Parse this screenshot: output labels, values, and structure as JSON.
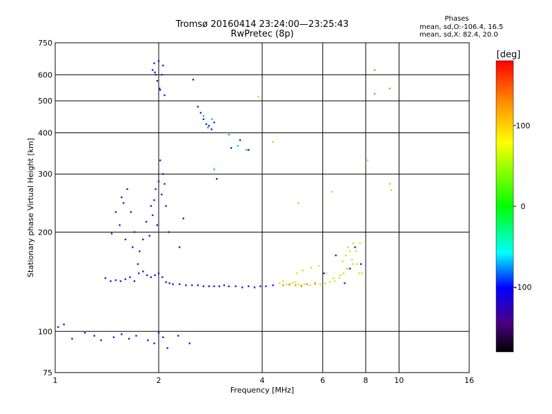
{
  "chart_data": {
    "type": "scatter",
    "title": "Tromsø 20160414 23:24:00—23:25:43",
    "subtitle": "RwPretec (8p)",
    "xlabel": "Frequency [MHz]",
    "ylabel": "Stationary phase Virtual Height [km]",
    "x_scale": "log",
    "y_scale": "log",
    "xlim": [
      1,
      16
    ],
    "ylim": [
      75,
      750
    ],
    "x_ticks": [
      1,
      2,
      4,
      6,
      8,
      10,
      16
    ],
    "x_tick_labels": [
      "1",
      "2",
      "4",
      "6",
      "8",
      "10",
      "16"
    ],
    "y_ticks": [
      75,
      100,
      200,
      300,
      400,
      500,
      600,
      750
    ],
    "y_tick_labels": [
      "75",
      "100",
      "200",
      "300",
      "400",
      "500",
      "600",
      "750"
    ],
    "grid": true,
    "info": {
      "heading": "Phases",
      "line1": "mean, sd,O:-106.4, 16.5",
      "line2": "mean, sd,X: 82.4, 20.0"
    },
    "colorbar": {
      "label": "[deg]",
      "range": [
        -180,
        180
      ],
      "ticks": [
        100,
        0,
        -100
      ],
      "tick_labels": [
        "100",
        "0",
        "-100"
      ],
      "colors": [
        "#ff0000",
        "#ff8c00",
        "#ffff00",
        "#00ff00",
        "#00ffff",
        "#0000ff",
        "#4b0082",
        "#000000"
      ]
    },
    "series": [
      {
        "x": [
          1.02,
          1.06,
          1.12,
          1.22,
          1.3,
          1.36,
          1.48,
          1.56,
          1.64,
          1.72,
          1.86,
          1.94,
          2.0,
          2.06,
          2.12,
          2.28,
          2.46,
          1.4,
          1.45,
          1.5,
          1.55,
          1.6,
          1.65,
          1.7,
          1.75,
          1.8,
          1.85,
          1.9,
          1.95,
          2.0,
          2.05,
          2.1,
          2.15,
          2.2,
          2.3,
          2.4,
          2.5,
          2.6,
          2.7,
          2.8,
          2.9,
          3.0,
          3.1,
          3.2,
          3.35,
          3.5,
          3.65,
          3.8,
          3.95,
          4.1,
          4.3,
          1.46,
          1.5,
          1.54,
          1.56,
          1.58,
          1.6,
          1.62,
          1.66,
          1.68,
          1.7,
          1.74,
          1.76,
          1.8,
          1.84,
          1.88,
          1.9,
          1.92,
          1.94,
          1.96,
          1.98,
          2.0,
          2.02,
          2.04,
          2.06,
          2.08,
          2.1,
          2.14,
          2.3,
          2.36,
          1.92,
          1.94,
          1.96,
          1.98,
          2.0,
          2.02,
          2.04,
          2.06,
          2.08,
          1.95,
          2.01,
          2.6,
          2.65,
          2.7,
          2.75,
          2.8,
          2.85,
          2.9,
          3.25,
          3.45,
          3.65,
          2.52,
          2.95,
          6.05,
          6.55,
          6.95,
          7.2,
          7.45,
          7.75
        ],
        "y": [
          103,
          105,
          95,
          99,
          97,
          94,
          96,
          98,
          95,
          97,
          94,
          92,
          99,
          96,
          89,
          97,
          92,
          145,
          142,
          143,
          142,
          144,
          146,
          142,
          150,
          152,
          148,
          146,
          148,
          150,
          146,
          141,
          140,
          139,
          139,
          138,
          138,
          138,
          137,
          137,
          137,
          137,
          138,
          137,
          137,
          136,
          137,
          136,
          137,
          137,
          138,
          198,
          230,
          210,
          255,
          245,
          190,
          270,
          230,
          180,
          200,
          160,
          175,
          190,
          215,
          195,
          240,
          225,
          250,
          270,
          210,
          285,
          330,
          260,
          300,
          280,
          240,
          200,
          180,
          220,
          620,
          650,
          600,
          575,
          660,
          540,
          600,
          640,
          520,
          610,
          545,
          480,
          460,
          440,
          425,
          420,
          410,
          430,
          360,
          380,
          355,
          580,
          290,
          150,
          170,
          140,
          155,
          180,
          160
        ],
        "color": "#1a1adc"
      },
      {
        "x": [
          4.5,
          4.6,
          4.7,
          4.8,
          4.9,
          5.0,
          5.1,
          5.2,
          5.3,
          5.5,
          5.7,
          5.9,
          6.1,
          6.3,
          6.5,
          6.7,
          6.9,
          7.1,
          7.3,
          7.5,
          7.7,
          5.05,
          5.25,
          5.55,
          5.85,
          6.15,
          6.45,
          6.75,
          7.05,
          7.35,
          7.65,
          6.85,
          7.0,
          7.1,
          7.2,
          7.35,
          7.55,
          7.8
        ],
        "y": [
          140,
          142,
          139,
          138,
          140,
          141,
          139,
          138,
          139,
          138,
          139,
          139,
          140,
          141,
          142,
          145,
          150,
          155,
          165,
          175,
          185,
          150,
          153,
          156,
          158,
          150,
          145,
          148,
          155,
          160,
          150,
          163,
          170,
          180,
          175,
          185,
          160,
          150
        ],
        "color": "#c8e61e"
      },
      {
        "x": [
          4.6,
          4.8,
          5.0,
          5.2,
          5.4,
          5.7,
          8.5,
          8.5,
          9.4
        ],
        "y": [
          138,
          139,
          138,
          137,
          139,
          140,
          620,
          525,
          545
        ],
        "color": "#ff8000"
      },
      {
        "x": [
          2.7,
          2.78,
          2.86,
          3.4,
          3.6,
          3.2,
          2.9
        ],
        "y": [
          450,
          415,
          440,
          365,
          355,
          395,
          310
        ],
        "color": "#00c8c8"
      },
      {
        "x": [
          3.9,
          4.3,
          5.1,
          6.4,
          8.1,
          9.4,
          9.5
        ],
        "y": [
          515,
          375,
          245,
          265,
          330,
          280,
          268
        ],
        "color": "#e6c814"
      }
    ]
  }
}
